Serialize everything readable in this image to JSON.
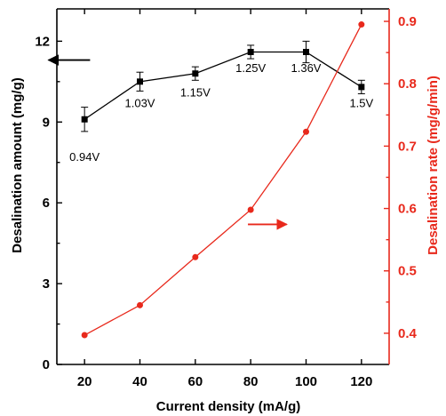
{
  "chart_data": {
    "type": "line",
    "title": "",
    "xlabel": "Current density (mA/g)",
    "xlim": [
      10,
      130
    ],
    "xticks": [
      20,
      40,
      60,
      80,
      100,
      120
    ],
    "y_left": {
      "label": "Desalination amount (mg/g)",
      "lim": [
        0,
        13.2
      ],
      "ticks": [
        0,
        3,
        6,
        9,
        12
      ],
      "color": "#000000"
    },
    "y_right": {
      "label": "Desalination rate (mg/g/min)",
      "lim": [
        0.35,
        0.92
      ],
      "ticks": [
        0.4,
        0.5,
        0.6,
        0.7,
        0.8,
        0.9
      ],
      "color": "#e8291c"
    },
    "series": [
      {
        "axis": "left",
        "color": "#000000",
        "marker": "square",
        "x": [
          20,
          40,
          60,
          80,
          100,
          120
        ],
        "y": [
          9.1,
          10.5,
          10.8,
          11.6,
          11.6,
          10.3
        ],
        "error": [
          0.45,
          0.35,
          0.25,
          0.25,
          0.4,
          0.25
        ]
      },
      {
        "axis": "right",
        "color": "#e8291c",
        "marker": "circle",
        "x": [
          20,
          40,
          60,
          80,
          100,
          120
        ],
        "y": [
          0.397,
          0.445,
          0.522,
          0.598,
          0.723,
          0.895
        ]
      }
    ],
    "annotations": [
      {
        "text": "0.94V",
        "x": 20,
        "y": 7.55
      },
      {
        "text": "1.03V",
        "x": 40,
        "y": 9.55
      },
      {
        "text": "1.15V",
        "x": 60,
        "y": 9.95
      },
      {
        "text": "1.25V",
        "x": 80,
        "y": 10.85
      },
      {
        "text": "1.36V",
        "x": 100,
        "y": 10.85
      },
      {
        "text": "1.5V",
        "x": 120,
        "y": 9.55
      }
    ],
    "arrows": [
      {
        "axis": "left",
        "direction": "left",
        "x": [
          7,
          22
        ],
        "y": 11.3,
        "color": "#000000"
      },
      {
        "axis": "left",
        "direction": "right",
        "x": [
          79,
          93
        ],
        "y": 5.2,
        "color": "#e8291c"
      }
    ]
  }
}
